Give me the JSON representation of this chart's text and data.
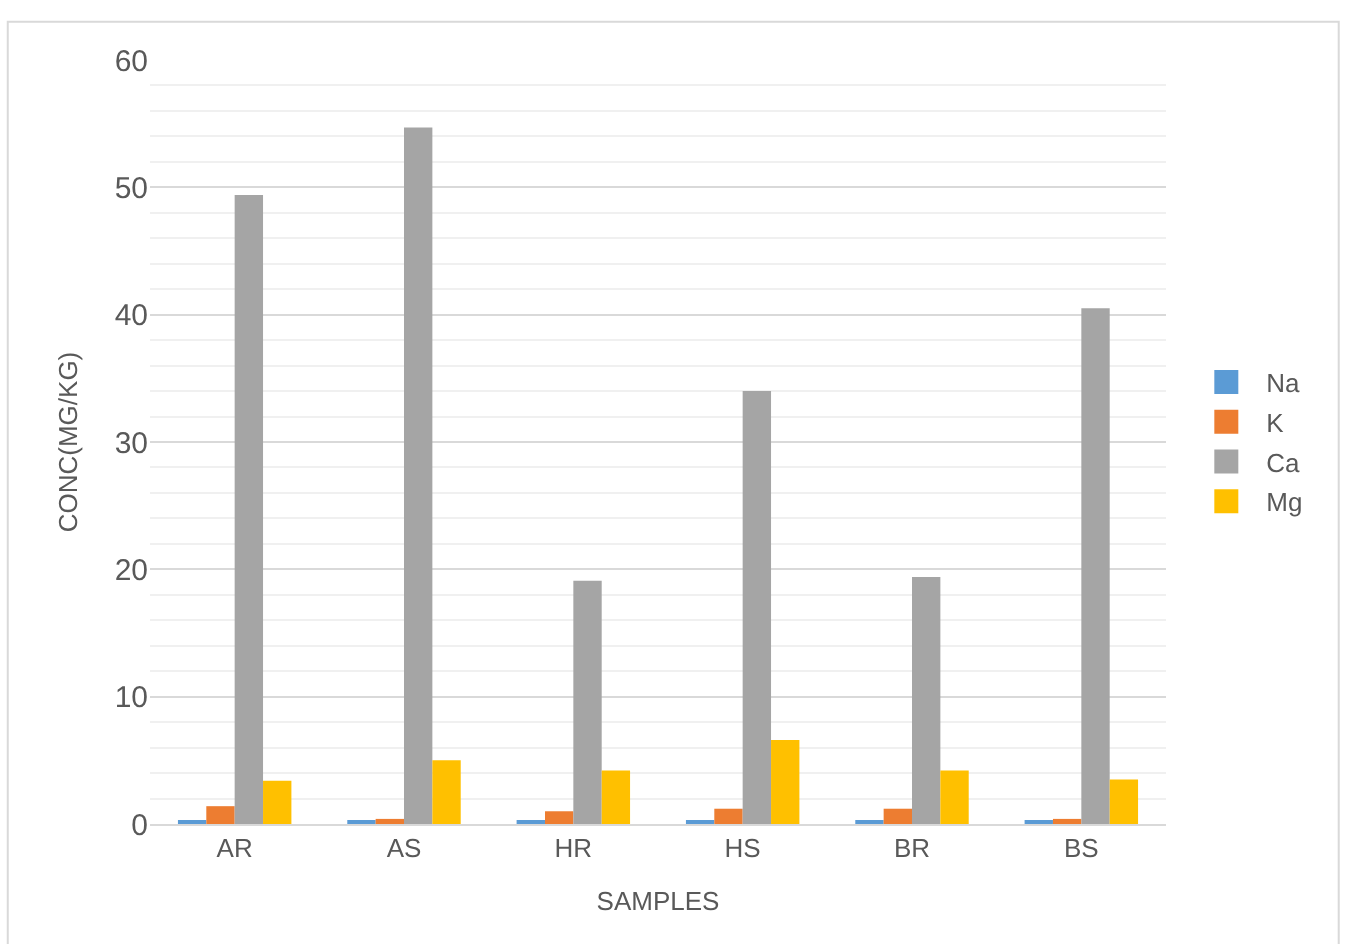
{
  "chart_data": {
    "type": "bar",
    "xlabel": "SAMPLES",
    "ylabel": "CONC(MG/KG)",
    "categories": [
      "AR",
      "AS",
      "HR",
      "HS",
      "BR",
      "BS"
    ],
    "series": [
      {
        "name": "Na",
        "color": "#5b9bd5",
        "values": [
          0.2,
          0.2,
          0.2,
          0.2,
          0.2,
          0.2
        ]
      },
      {
        "name": "K",
        "color": "#ed7d31",
        "values": [
          1.4,
          0.4,
          1.0,
          1.2,
          1.2,
          0.4
        ]
      },
      {
        "name": "Ca",
        "color": "#a5a5a5",
        "values": [
          49.4,
          54.7,
          19.1,
          34.0,
          19.4,
          40.5
        ]
      },
      {
        "name": "Mg",
        "color": "#ffc000",
        "values": [
          3.4,
          5.0,
          4.2,
          6.6,
          4.2,
          3.5
        ]
      }
    ],
    "ylim": [
      0,
      60
    ],
    "yticks": [
      0,
      10,
      20,
      30,
      40,
      50,
      60
    ],
    "grid": "y",
    "legend": "right"
  }
}
